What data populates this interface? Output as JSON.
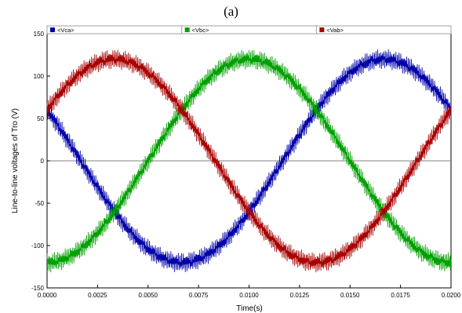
{
  "caption": "(a)",
  "chart_data": {
    "type": "line",
    "title": "",
    "xlabel": "Time(s)",
    "ylabel": "Line-to-line voltages of Tro (V)",
    "xlim": [
      0,
      0.02
    ],
    "ylim": [
      -150,
      150
    ],
    "x_ticks": [
      "0.0000",
      "0.0025",
      "0.0050",
      "0.0075",
      "0.0100",
      "0.0125",
      "0.0150",
      "0.0175",
      "0.0200"
    ],
    "y_ticks": [
      "150",
      "100",
      "50",
      "0",
      "-50",
      "-100",
      "-150"
    ],
    "grid": false,
    "zero_line": true,
    "legend_position": "top",
    "series": [
      {
        "name": "<Vca>",
        "color": "#0000a8",
        "amplitude": 120,
        "phase_deg": 150
      },
      {
        "name": "<Vbc>",
        "color": "#00a000",
        "amplitude": 120,
        "phase_deg": -90
      },
      {
        "name": "<Vab>",
        "color": "#a80000",
        "amplitude": 120,
        "phase_deg": 30
      }
    ],
    "frequency_hz": 50,
    "ripple_amplitude": 12
  }
}
